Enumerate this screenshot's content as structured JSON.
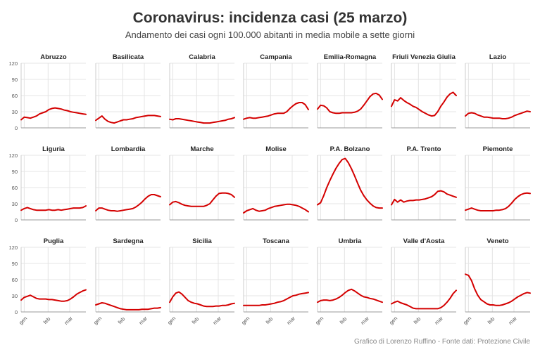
{
  "title": "Coronavirus: incidenza casi (25 marzo)",
  "subtitle": "Andamento dei casi ogni 100.000 abitanti in media mobile a sette giorni",
  "credit": "Grafico di Lorenzo Ruffino - Fonte dati: Protezione Civile",
  "colors": {
    "line": "#d40000",
    "grid": "#e4e4e4",
    "axis": "#999999",
    "text": "#555555"
  },
  "chart_data": {
    "type": "line",
    "layout": "small-multiples",
    "x_tick_labels": [
      "gen",
      "feb",
      "mar"
    ],
    "x_tick_positions": [
      4,
      35,
      63
    ],
    "x_range": [
      0,
      84
    ],
    "ylim": [
      0,
      120
    ],
    "y_ticks": [
      0,
      30,
      60,
      90,
      120
    ],
    "grid": true,
    "x_points": [
      0,
      4,
      8,
      12,
      16,
      20,
      24,
      28,
      32,
      36,
      40,
      44,
      48,
      52,
      56,
      60,
      64,
      68,
      72,
      76,
      80,
      84
    ],
    "panels": [
      {
        "name": "Abruzzo",
        "values": [
          15,
          20,
          19,
          18,
          20,
          22,
          26,
          28,
          30,
          34,
          36,
          37,
          36,
          35,
          33,
          32,
          30,
          29,
          28,
          27,
          26,
          25
        ]
      },
      {
        "name": "Basilicata",
        "values": [
          14,
          18,
          22,
          16,
          12,
          10,
          9,
          11,
          13,
          15,
          15,
          16,
          17,
          19,
          20,
          21,
          22,
          23,
          23,
          23,
          22,
          21
        ]
      },
      {
        "name": "Calabria",
        "values": [
          16,
          15,
          17,
          17,
          16,
          15,
          14,
          13,
          12,
          11,
          10,
          9,
          9,
          9,
          10,
          11,
          12,
          13,
          14,
          16,
          17,
          19
        ]
      },
      {
        "name": "Campania",
        "values": [
          16,
          18,
          19,
          18,
          18,
          19,
          20,
          21,
          22,
          24,
          26,
          27,
          27,
          27,
          30,
          36,
          41,
          45,
          47,
          47,
          43,
          34
        ]
      },
      {
        "name": "Emilia-Romagna",
        "values": [
          35,
          42,
          41,
          37,
          30,
          28,
          27,
          27,
          28,
          28,
          28,
          28,
          29,
          31,
          35,
          42,
          50,
          58,
          63,
          64,
          61,
          53
        ]
      },
      {
        "name": "Friuli Venezia Giulia",
        "values": [
          40,
          52,
          50,
          56,
          51,
          47,
          44,
          40,
          38,
          34,
          30,
          27,
          24,
          22,
          23,
          30,
          40,
          48,
          57,
          63,
          66,
          60
        ]
      },
      {
        "name": "Lazio",
        "values": [
          22,
          27,
          28,
          27,
          24,
          22,
          20,
          20,
          19,
          18,
          18,
          18,
          17,
          17,
          18,
          20,
          23,
          25,
          27,
          29,
          31,
          30
        ]
      },
      {
        "name": "Liguria",
        "values": [
          18,
          21,
          23,
          21,
          19,
          18,
          18,
          18,
          18,
          19,
          18,
          18,
          19,
          18,
          19,
          20,
          21,
          22,
          22,
          22,
          23,
          26
        ]
      },
      {
        "name": "Lombardia",
        "values": [
          17,
          22,
          22,
          20,
          18,
          17,
          17,
          16,
          17,
          18,
          19,
          20,
          21,
          24,
          28,
          33,
          39,
          44,
          47,
          47,
          45,
          43
        ]
      },
      {
        "name": "Marche",
        "values": [
          28,
          33,
          34,
          32,
          29,
          27,
          26,
          25,
          25,
          25,
          25,
          25,
          27,
          30,
          37,
          44,
          49,
          50,
          50,
          49,
          47,
          42
        ]
      },
      {
        "name": "Molise",
        "values": [
          13,
          17,
          19,
          21,
          18,
          16,
          17,
          18,
          21,
          23,
          25,
          26,
          27,
          28,
          29,
          29,
          28,
          27,
          25,
          22,
          19,
          15
        ]
      },
      {
        "name": "P.A. Bolzano",
        "values": [
          28,
          32,
          45,
          60,
          73,
          85,
          96,
          105,
          112,
          114,
          106,
          95,
          82,
          68,
          55,
          45,
          37,
          31,
          26,
          23,
          22,
          22
        ]
      },
      {
        "name": "P.A. Trento",
        "values": [
          28,
          38,
          33,
          37,
          33,
          35,
          36,
          36,
          37,
          37,
          38,
          39,
          41,
          43,
          47,
          53,
          54,
          52,
          48,
          46,
          44,
          42
        ]
      },
      {
        "name": "Piemonte",
        "values": [
          18,
          20,
          22,
          20,
          18,
          17,
          17,
          17,
          17,
          17,
          18,
          18,
          19,
          21,
          25,
          31,
          38,
          43,
          47,
          49,
          50,
          49
        ]
      },
      {
        "name": "Puglia",
        "values": [
          22,
          27,
          29,
          31,
          28,
          25,
          24,
          24,
          24,
          23,
          23,
          22,
          21,
          20,
          20,
          21,
          24,
          28,
          33,
          36,
          39,
          41
        ]
      },
      {
        "name": "Sardegna",
        "values": [
          13,
          15,
          17,
          16,
          14,
          12,
          10,
          8,
          6,
          5,
          4,
          4,
          4,
          4,
          4,
          5,
          5,
          5,
          6,
          7,
          7,
          8
        ]
      },
      {
        "name": "Sicilia",
        "values": [
          18,
          28,
          35,
          37,
          33,
          27,
          21,
          18,
          16,
          15,
          13,
          11,
          10,
          10,
          10,
          11,
          11,
          12,
          12,
          13,
          15,
          16
        ]
      },
      {
        "name": "Toscana",
        "values": [
          12,
          12,
          12,
          12,
          12,
          12,
          13,
          13,
          14,
          15,
          16,
          18,
          19,
          21,
          24,
          27,
          30,
          31,
          33,
          34,
          35,
          36
        ]
      },
      {
        "name": "Umbria",
        "values": [
          18,
          21,
          22,
          22,
          21,
          22,
          24,
          27,
          31,
          36,
          40,
          42,
          39,
          35,
          31,
          28,
          27,
          25,
          24,
          22,
          20,
          18
        ]
      },
      {
        "name": "Valle d'Aosta",
        "values": [
          15,
          18,
          20,
          17,
          15,
          13,
          10,
          7,
          6,
          6,
          6,
          6,
          6,
          6,
          6,
          6,
          8,
          12,
          18,
          25,
          34,
          40
        ]
      },
      {
        "name": "Veneto",
        "values": [
          70,
          68,
          58,
          43,
          31,
          23,
          19,
          15,
          13,
          13,
          12,
          12,
          13,
          15,
          17,
          20,
          24,
          28,
          31,
          34,
          36,
          35
        ]
      }
    ]
  }
}
